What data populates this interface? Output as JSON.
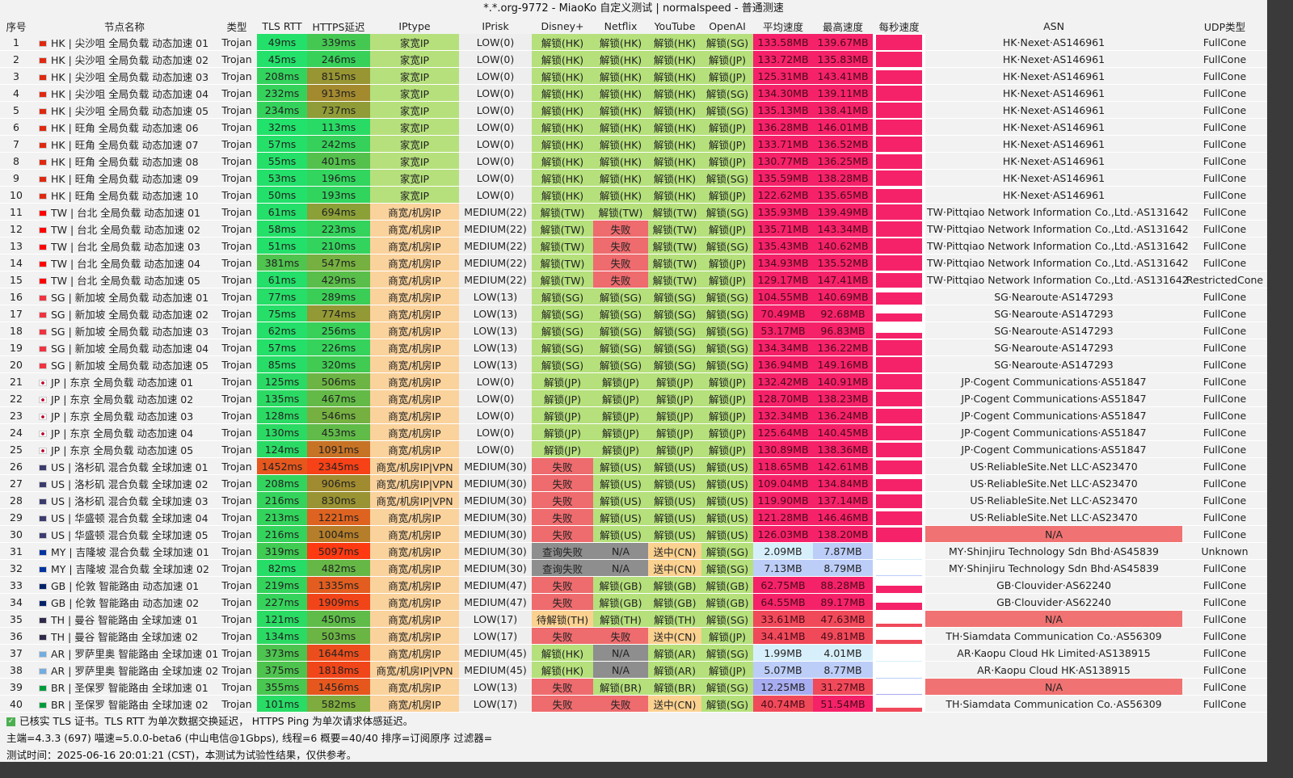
{
  "title": "*.*.org-9772 - MiaoKo 自定义测试 | normalspeed - 普通测速",
  "headers": [
    "序号",
    "节点名称",
    "类型",
    "TLS RTT",
    "HTTPS延迟",
    "IPtype",
    "IPrisk",
    "Disney+",
    "Netflix",
    "YouTube",
    "OpenAI",
    "平均速度",
    "最高速度",
    "每秒速度",
    "ASN",
    "UDP类型"
  ],
  "colors": {
    "unlock": "#b5e07b",
    "fail": "#ee6b6e",
    "na": "#8e8e8e",
    "pending": "#fbd190",
    "home_ip": "#b6e07c",
    "dc_ip": "#fad29c",
    "asn_na": "#f07272"
  },
  "rows": [
    [
      "1",
      "HK",
      "HK | 尖沙咀 全局负载 动态加速 01",
      "Trojan",
      "49ms",
      "339ms",
      "家宽IP",
      "LOW(0)",
      "解锁(HK)",
      "解锁(HK)",
      "解锁(HK)",
      "解锁(SG)",
      "133.58MB",
      "139.67MB",
      "HK·Nexet·AS146961",
      "FullCone"
    ],
    [
      "2",
      "HK",
      "HK | 尖沙咀 全局负载 动态加速 02",
      "Trojan",
      "45ms",
      "246ms",
      "家宽IP",
      "LOW(0)",
      "解锁(HK)",
      "解锁(HK)",
      "解锁(HK)",
      "解锁(JP)",
      "133.72MB",
      "135.83MB",
      "HK·Nexet·AS146961",
      "FullCone"
    ],
    [
      "3",
      "HK",
      "HK | 尖沙咀 全局负载 动态加速 03",
      "Trojan",
      "208ms",
      "815ms",
      "家宽IP",
      "LOW(0)",
      "解锁(HK)",
      "解锁(HK)",
      "解锁(HK)",
      "解锁(JP)",
      "125.31MB",
      "143.41MB",
      "HK·Nexet·AS146961",
      "FullCone"
    ],
    [
      "4",
      "HK",
      "HK | 尖沙咀 全局负载 动态加速 04",
      "Trojan",
      "232ms",
      "913ms",
      "家宽IP",
      "LOW(0)",
      "解锁(HK)",
      "解锁(HK)",
      "解锁(HK)",
      "解锁(SG)",
      "134.30MB",
      "139.11MB",
      "HK·Nexet·AS146961",
      "FullCone"
    ],
    [
      "5",
      "HK",
      "HK | 尖沙咀 全局负载 动态加速 05",
      "Trojan",
      "234ms",
      "737ms",
      "家宽IP",
      "LOW(0)",
      "解锁(HK)",
      "解锁(HK)",
      "解锁(HK)",
      "解锁(SG)",
      "135.13MB",
      "138.41MB",
      "HK·Nexet·AS146961",
      "FullCone"
    ],
    [
      "6",
      "HK",
      "HK | 旺角 全局负载 动态加速 06",
      "Trojan",
      "32ms",
      "113ms",
      "家宽IP",
      "LOW(0)",
      "解锁(HK)",
      "解锁(HK)",
      "解锁(HK)",
      "解锁(JP)",
      "136.28MB",
      "146.01MB",
      "HK·Nexet·AS146961",
      "FullCone"
    ],
    [
      "7",
      "HK",
      "HK | 旺角 全局负载 动态加速 07",
      "Trojan",
      "57ms",
      "242ms",
      "家宽IP",
      "LOW(0)",
      "解锁(HK)",
      "解锁(HK)",
      "解锁(HK)",
      "解锁(JP)",
      "133.71MB",
      "136.52MB",
      "HK·Nexet·AS146961",
      "FullCone"
    ],
    [
      "8",
      "HK",
      "HK | 旺角 全局负载 动态加速 08",
      "Trojan",
      "55ms",
      "401ms",
      "家宽IP",
      "LOW(0)",
      "解锁(HK)",
      "解锁(HK)",
      "解锁(HK)",
      "解锁(JP)",
      "130.77MB",
      "136.25MB",
      "HK·Nexet·AS146961",
      "FullCone"
    ],
    [
      "9",
      "HK",
      "HK | 旺角 全局负载 动态加速 09",
      "Trojan",
      "53ms",
      "196ms",
      "家宽IP",
      "LOW(0)",
      "解锁(HK)",
      "解锁(HK)",
      "解锁(HK)",
      "解锁(SG)",
      "135.59MB",
      "138.28MB",
      "HK·Nexet·AS146961",
      "FullCone"
    ],
    [
      "10",
      "HK",
      "HK | 旺角 全局负载 动态加速 10",
      "Trojan",
      "50ms",
      "193ms",
      "家宽IP",
      "LOW(0)",
      "解锁(HK)",
      "解锁(HK)",
      "解锁(HK)",
      "解锁(JP)",
      "122.62MB",
      "135.65MB",
      "HK·Nexet·AS146961",
      "FullCone"
    ],
    [
      "11",
      "TW",
      "TW | 台北 全局负载 动态加速 01",
      "Trojan",
      "61ms",
      "694ms",
      "商宽/机房IP",
      "MEDIUM(22)",
      "解锁(TW)",
      "解锁(TW)",
      "解锁(TW)",
      "解锁(SG)",
      "135.93MB",
      "139.49MB",
      "TW·Pittqiao Network Information Co.,Ltd.·AS131642",
      "FullCone"
    ],
    [
      "12",
      "TW",
      "TW | 台北 全局负载 动态加速 02",
      "Trojan",
      "58ms",
      "223ms",
      "商宽/机房IP",
      "MEDIUM(22)",
      "解锁(TW)",
      "失败",
      "解锁(TW)",
      "解锁(JP)",
      "135.71MB",
      "143.34MB",
      "TW·Pittqiao Network Information Co.,Ltd.·AS131642",
      "FullCone"
    ],
    [
      "13",
      "TW",
      "TW | 台北 全局负载 动态加速 03",
      "Trojan",
      "51ms",
      "210ms",
      "商宽/机房IP",
      "MEDIUM(22)",
      "解锁(TW)",
      "失败",
      "解锁(TW)",
      "解锁(SG)",
      "135.43MB",
      "140.62MB",
      "TW·Pittqiao Network Information Co.,Ltd.·AS131642",
      "FullCone"
    ],
    [
      "14",
      "TW",
      "TW | 台北 全局负载 动态加速 04",
      "Trojan",
      "381ms",
      "547ms",
      "商宽/机房IP",
      "MEDIUM(22)",
      "解锁(TW)",
      "失败",
      "解锁(TW)",
      "解锁(JP)",
      "134.93MB",
      "135.52MB",
      "TW·Pittqiao Network Information Co.,Ltd.·AS131642",
      "FullCone"
    ],
    [
      "15",
      "TW",
      "TW | 台北 全局负载 动态加速 05",
      "Trojan",
      "61ms",
      "429ms",
      "商宽/机房IP",
      "MEDIUM(22)",
      "解锁(TW)",
      "失败",
      "解锁(TW)",
      "解锁(JP)",
      "129.17MB",
      "147.41MB",
      "TW·Pittqiao Network Information Co.,Ltd.·AS131642",
      "RestrictedCone"
    ],
    [
      "16",
      "SG",
      "SG | 新加坡 全局负载 动态加速 01",
      "Trojan",
      "77ms",
      "289ms",
      "商宽/机房IP",
      "LOW(13)",
      "解锁(SG)",
      "解锁(SG)",
      "解锁(SG)",
      "解锁(SG)",
      "104.55MB",
      "140.69MB",
      "SG·Nearoute·AS147293",
      "FullCone"
    ],
    [
      "17",
      "SG",
      "SG | 新加坡 全局负载 动态加速 02",
      "Trojan",
      "75ms",
      "774ms",
      "商宽/机房IP",
      "LOW(13)",
      "解锁(SG)",
      "解锁(SG)",
      "解锁(SG)",
      "解锁(SG)",
      "70.49MB",
      "92.68MB",
      "SG·Nearoute·AS147293",
      "FullCone"
    ],
    [
      "18",
      "SG",
      "SG | 新加坡 全局负载 动态加速 03",
      "Trojan",
      "62ms",
      "256ms",
      "商宽/机房IP",
      "LOW(13)",
      "解锁(SG)",
      "解锁(SG)",
      "解锁(SG)",
      "解锁(SG)",
      "53.17MB",
      "96.83MB",
      "SG·Nearoute·AS147293",
      "FullCone"
    ],
    [
      "19",
      "SG",
      "SG | 新加坡 全局负载 动态加速 04",
      "Trojan",
      "57ms",
      "226ms",
      "商宽/机房IP",
      "LOW(13)",
      "解锁(SG)",
      "解锁(SG)",
      "解锁(SG)",
      "解锁(SG)",
      "134.34MB",
      "136.22MB",
      "SG·Nearoute·AS147293",
      "FullCone"
    ],
    [
      "20",
      "SG",
      "SG | 新加坡 全局负载 动态加速 05",
      "Trojan",
      "85ms",
      "320ms",
      "商宽/机房IP",
      "LOW(13)",
      "解锁(SG)",
      "解锁(SG)",
      "解锁(SG)",
      "解锁(SG)",
      "136.94MB",
      "149.16MB",
      "SG·Nearoute·AS147293",
      "FullCone"
    ],
    [
      "21",
      "JP",
      "JP | 东京 全局负载 动态加速 01",
      "Trojan",
      "125ms",
      "506ms",
      "商宽/机房IP",
      "LOW(0)",
      "解锁(JP)",
      "解锁(JP)",
      "解锁(JP)",
      "解锁(JP)",
      "132.42MB",
      "140.91MB",
      "JP·Cogent Communications·AS51847",
      "FullCone"
    ],
    [
      "22",
      "JP",
      "JP | 东京 全局负载 动态加速 02",
      "Trojan",
      "135ms",
      "467ms",
      "商宽/机房IP",
      "LOW(0)",
      "解锁(JP)",
      "解锁(JP)",
      "解锁(JP)",
      "解锁(JP)",
      "128.70MB",
      "138.23MB",
      "JP·Cogent Communications·AS51847",
      "FullCone"
    ],
    [
      "23",
      "JP",
      "JP | 东京 全局负载 动态加速 03",
      "Trojan",
      "128ms",
      "546ms",
      "商宽/机房IP",
      "LOW(0)",
      "解锁(JP)",
      "解锁(JP)",
      "解锁(JP)",
      "解锁(JP)",
      "132.34MB",
      "136.24MB",
      "JP·Cogent Communications·AS51847",
      "FullCone"
    ],
    [
      "24",
      "JP",
      "JP | 东京 全局负载 动态加速 04",
      "Trojan",
      "130ms",
      "453ms",
      "商宽/机房IP",
      "LOW(0)",
      "解锁(JP)",
      "解锁(JP)",
      "解锁(JP)",
      "解锁(JP)",
      "125.64MB",
      "140.45MB",
      "JP·Cogent Communications·AS51847",
      "FullCone"
    ],
    [
      "25",
      "JP",
      "JP | 东京 全局负载 动态加速 05",
      "Trojan",
      "124ms",
      "1091ms",
      "商宽/机房IP",
      "LOW(0)",
      "解锁(JP)",
      "解锁(JP)",
      "解锁(JP)",
      "解锁(JP)",
      "130.89MB",
      "138.36MB",
      "JP·Cogent Communications·AS51847",
      "FullCone"
    ],
    [
      "26",
      "US",
      "US | 洛杉矶 混合负载 全球加速 01",
      "Trojan",
      "1452ms",
      "2345ms",
      "商宽/机房IP|VPN",
      "MEDIUM(30)",
      "失败",
      "解锁(US)",
      "解锁(US)",
      "解锁(US)",
      "118.65MB",
      "142.61MB",
      "US·ReliableSite.Net LLC·AS23470",
      "FullCone"
    ],
    [
      "27",
      "US",
      "US | 洛杉矶 混合负载 全球加速 02",
      "Trojan",
      "208ms",
      "906ms",
      "商宽/机房IP|VPN",
      "MEDIUM(30)",
      "失败",
      "解锁(US)",
      "解锁(US)",
      "解锁(US)",
      "109.04MB",
      "134.84MB",
      "US·ReliableSite.Net LLC·AS23470",
      "FullCone"
    ],
    [
      "28",
      "US",
      "US | 洛杉矶 混合负载 全球加速 03",
      "Trojan",
      "216ms",
      "830ms",
      "商宽/机房IP|VPN",
      "MEDIUM(30)",
      "失败",
      "解锁(US)",
      "解锁(US)",
      "解锁(US)",
      "119.90MB",
      "137.14MB",
      "US·ReliableSite.Net LLC·AS23470",
      "FullCone"
    ],
    [
      "29",
      "US",
      "US | 华盛顿 混合负载 全球加速 04",
      "Trojan",
      "213ms",
      "1221ms",
      "商宽/机房IP",
      "MEDIUM(30)",
      "失败",
      "解锁(US)",
      "解锁(US)",
      "解锁(US)",
      "121.28MB",
      "146.46MB",
      "US·ReliableSite.Net LLC·AS23470",
      "FullCone"
    ],
    [
      "30",
      "US",
      "US | 华盛顿 混合负载 全球加速 05",
      "Trojan",
      "216ms",
      "1004ms",
      "商宽/机房IP",
      "MEDIUM(30)",
      "失败",
      "解锁(US)",
      "解锁(US)",
      "解锁(US)",
      "126.03MB",
      "138.20MB",
      "N/A",
      "FullCone"
    ],
    [
      "31",
      "MY",
      "MY | 吉隆坡 混合负载 全球加速 01",
      "Trojan",
      "319ms",
      "5097ms",
      "商宽/机房IP",
      "MEDIUM(30)",
      "查询失败",
      "N/A",
      "送中(CN)",
      "解锁(SG)",
      "2.09MB",
      "7.87MB",
      "MY·Shinjiru Technology Sdn Bhd·AS45839",
      "Unknown"
    ],
    [
      "32",
      "MY",
      "MY | 吉隆坡 混合负载 全球加速 02",
      "Trojan",
      "82ms",
      "482ms",
      "商宽/机房IP",
      "MEDIUM(30)",
      "查询失败",
      "N/A",
      "送中(CN)",
      "解锁(SG)",
      "7.13MB",
      "8.79MB",
      "MY·Shinjiru Technology Sdn Bhd·AS45839",
      "FullCone"
    ],
    [
      "33",
      "GB",
      "GB | 伦敦 智能路由 动态加速 01",
      "Trojan",
      "219ms",
      "1335ms",
      "商宽/机房IP",
      "MEDIUM(47)",
      "失败",
      "解锁(GB)",
      "解锁(GB)",
      "解锁(GB)",
      "62.75MB",
      "88.28MB",
      "GB·Clouvider·AS62240",
      "FullCone"
    ],
    [
      "34",
      "GB",
      "GB | 伦敦 智能路由 动态加速 02",
      "Trojan",
      "227ms",
      "1909ms",
      "商宽/机房IP",
      "MEDIUM(47)",
      "失败",
      "解锁(GB)",
      "解锁(GB)",
      "解锁(GB)",
      "64.55MB",
      "89.17MB",
      "GB·Clouvider·AS62240",
      "FullCone"
    ],
    [
      "35",
      "TH",
      "TH | 曼谷 智能路由 全球加速 01",
      "Trojan",
      "121ms",
      "450ms",
      "商宽/机房IP",
      "LOW(17)",
      "待解锁(TH)",
      "解锁(TH)",
      "解锁(TH)",
      "解锁(SG)",
      "33.61MB",
      "47.63MB",
      "N/A",
      "FullCone"
    ],
    [
      "36",
      "TH",
      "TH | 曼谷 智能路由 全球加速 02",
      "Trojan",
      "134ms",
      "503ms",
      "商宽/机房IP",
      "LOW(17)",
      "失败",
      "失败",
      "送中(CN)",
      "解锁(JP)",
      "34.41MB",
      "49.81MB",
      "TH·Siamdata Communication Co.·AS56309",
      "FullCone"
    ],
    [
      "37",
      "AR",
      "AR | 罗萨里奥 智能路由 全球加速 01",
      "Trojan",
      "373ms",
      "1644ms",
      "商宽/机房IP",
      "MEDIUM(45)",
      "解锁(HK)",
      "N/A",
      "解锁(AR)",
      "解锁(SG)",
      "1.99MB",
      "4.01MB",
      "AR·Kaopu Cloud Hk Limited·AS138915",
      "FullCone"
    ],
    [
      "38",
      "AR",
      "AR | 罗萨里奥 智能路由 全球加速 02",
      "Trojan",
      "375ms",
      "1818ms",
      "商宽/机房IP|VPN",
      "MEDIUM(45)",
      "解锁(HK)",
      "N/A",
      "解锁(AR)",
      "解锁(JP)",
      "5.07MB",
      "8.77MB",
      "AR·Kaopu Cloud HK·AS138915",
      "FullCone"
    ],
    [
      "39",
      "BR",
      "BR | 圣保罗 智能路由 全球加速 01",
      "Trojan",
      "355ms",
      "1456ms",
      "商宽/机房IP",
      "LOW(13)",
      "失败",
      "解锁(BR)",
      "解锁(BR)",
      "解锁(SG)",
      "12.25MB",
      "31.27MB",
      "N/A",
      "FullCone"
    ],
    [
      "40",
      "BR",
      "BR | 圣保罗 智能路由 全球加速 02",
      "Trojan",
      "101ms",
      "582ms",
      "商宽/机房IP",
      "LOW(17)",
      "失败",
      "失败",
      "送中(CN)",
      "解锁(SG)",
      "40.74MB",
      "51.54MB",
      "TH·Siamdata Communication Co.·AS56309",
      "FullCone"
    ]
  ],
  "footer": {
    "line1": "已核实 TLS 证书。TLS RTT 为单次数据交换延迟， HTTPS Ping 为单次请求体感延迟。",
    "line2": "主端=4.3.3 (697) 喵速=5.0.0-beta6 (中山电信@1Gbps), 线程=6 概要=40/40 排序=订阅原序 过滤器=",
    "line3": "测试时间：2025-06-16 20:01:21 (CST)，本测试为试验性结果，仅供参考。"
  }
}
